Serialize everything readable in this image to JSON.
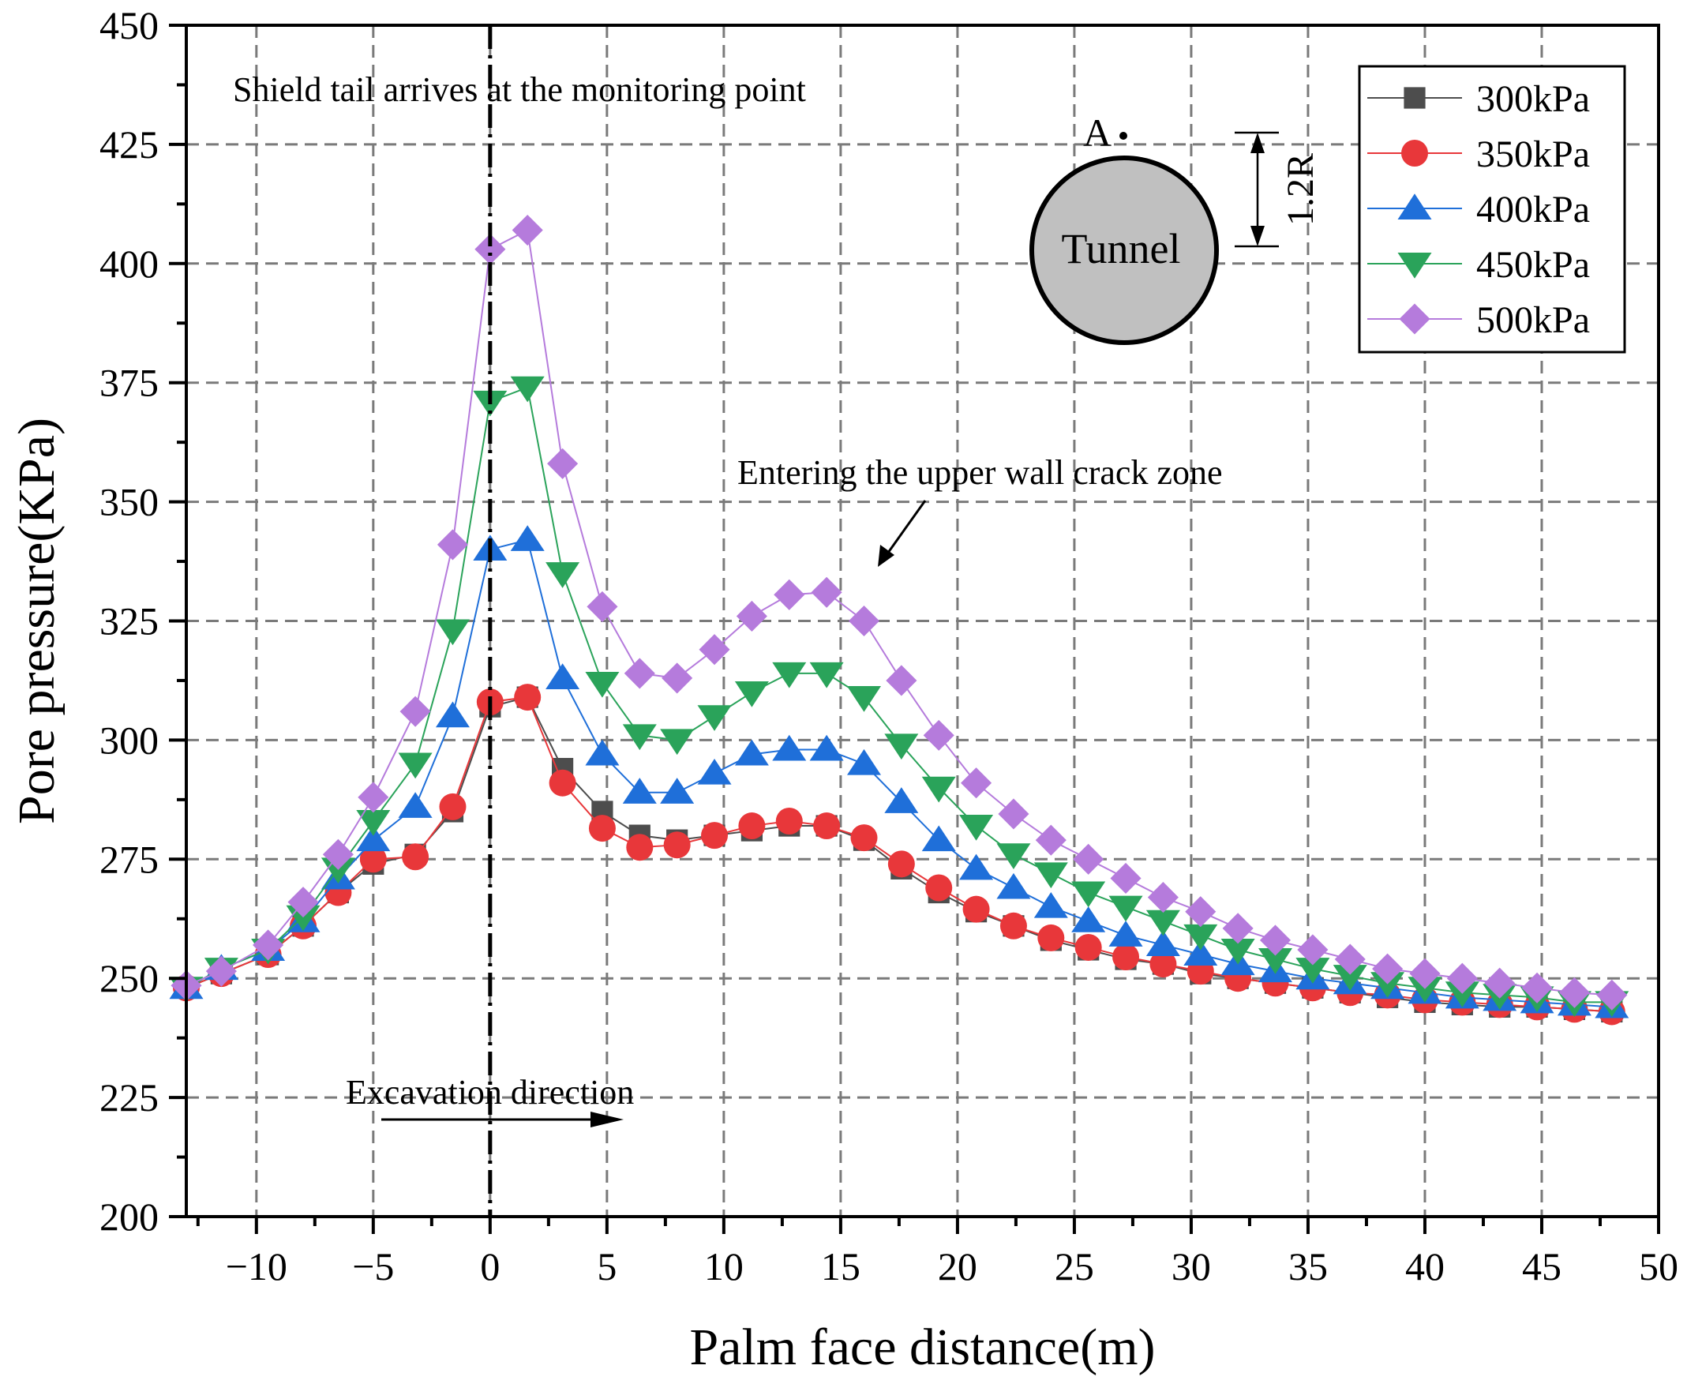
{
  "chart_data": {
    "type": "line",
    "title": "",
    "xlabel": "Palm face distance(m)",
    "ylabel": "Pore pressure(KPa)",
    "xlim": [
      -13,
      50
    ],
    "ylim": [
      200,
      450
    ],
    "grid": true,
    "legend_position": "top-right",
    "x_ticks": [
      -10,
      -5,
      0,
      5,
      10,
      15,
      20,
      25,
      30,
      35,
      40,
      45,
      50
    ],
    "x_tick_labels": [
      "−10",
      "−5",
      "0",
      "5",
      "10",
      "15",
      "20",
      "25",
      "30",
      "35",
      "40",
      "45",
      "50"
    ],
    "y_ticks": [
      200,
      225,
      250,
      275,
      300,
      325,
      350,
      375,
      400,
      425,
      450
    ],
    "y_tick_labels": [
      "200",
      "225",
      "250",
      "275",
      "300",
      "325",
      "350",
      "375",
      "400",
      "425",
      "450"
    ],
    "x": [
      -13,
      -11.5,
      -9.5,
      -8,
      -6.5,
      -5,
      -3.2,
      -1.6,
      0,
      1.6,
      3.1,
      4.8,
      6.4,
      8,
      9.6,
      11.2,
      12.8,
      14.4,
      16,
      17.6,
      19.2,
      20.8,
      22.4,
      24,
      25.6,
      27.2,
      28.8,
      30.4,
      32,
      33.6,
      35.2,
      36.8,
      38.4,
      40,
      41.6,
      43.2,
      44.8,
      46.4,
      48
    ],
    "series": [
      {
        "name": "300kPa",
        "color": "#4d4d4d",
        "marker": "square",
        "values": [
          248,
          251,
          255,
          261,
          268,
          274,
          276,
          285,
          307,
          309,
          294,
          285,
          280,
          279,
          280,
          281,
          282,
          282,
          279,
          273,
          268,
          264,
          261,
          258,
          256,
          254,
          253,
          251,
          250,
          249,
          248,
          247,
          246,
          245,
          244.5,
          244,
          244,
          243.5,
          243
        ]
      },
      {
        "name": "350kPa",
        "color": "#e8373a",
        "marker": "circle",
        "values": [
          248,
          251,
          255,
          261,
          268,
          275,
          275.5,
          286,
          308,
          309,
          291,
          281.5,
          277.5,
          278,
          280,
          282,
          283,
          282,
          279.5,
          274,
          269,
          264.5,
          261,
          258.5,
          256.5,
          254.5,
          253,
          251.5,
          250,
          249,
          248,
          247,
          246.5,
          245.5,
          245,
          244.5,
          244,
          243.5,
          243
        ]
      },
      {
        "name": "400kPa",
        "color": "#1f6fd9",
        "marker": "triangle-up",
        "values": [
          248,
          252,
          256,
          262,
          271,
          279,
          286,
          305,
          340,
          342,
          313,
          297,
          289,
          289,
          293,
          297,
          298,
          298,
          295,
          287,
          279,
          273,
          269,
          265,
          262,
          259,
          257,
          255,
          253,
          251.5,
          250,
          249,
          248,
          247,
          246,
          245.5,
          245,
          244.5,
          244
        ]
      },
      {
        "name": "450kPa",
        "color": "#2aa35a",
        "marker": "triangle-down",
        "values": [
          248,
          252,
          256,
          263,
          273,
          283,
          295,
          323,
          371,
          374,
          335,
          312,
          301,
          300,
          305,
          310,
          314,
          314,
          309,
          299,
          290,
          282,
          276,
          272,
          268,
          265,
          262,
          259,
          256,
          254,
          252,
          250.5,
          249,
          248,
          247,
          246.5,
          246,
          245,
          245
        ]
      },
      {
        "name": "500kPa",
        "color": "#b57bdc",
        "marker": "diamond",
        "values": [
          248.5,
          251.5,
          257,
          266,
          276,
          288,
          306,
          341,
          403,
          407,
          358,
          328,
          314,
          313,
          319,
          326,
          330.5,
          331,
          325,
          312.5,
          301,
          291,
          284.5,
          279,
          275,
          271,
          267,
          264,
          260.5,
          258,
          256,
          254,
          252,
          251,
          250,
          249,
          248,
          247,
          246.5
        ]
      }
    ],
    "annotations": {
      "shield_tail": "Shield tail arrives at the monitoring point",
      "crack_zone": "Entering the upper wall crack zone",
      "excavation": "Excavation direction",
      "tunnel_label": "Tunnel",
      "point_label": "A",
      "distance_label": "1.2R"
    }
  }
}
